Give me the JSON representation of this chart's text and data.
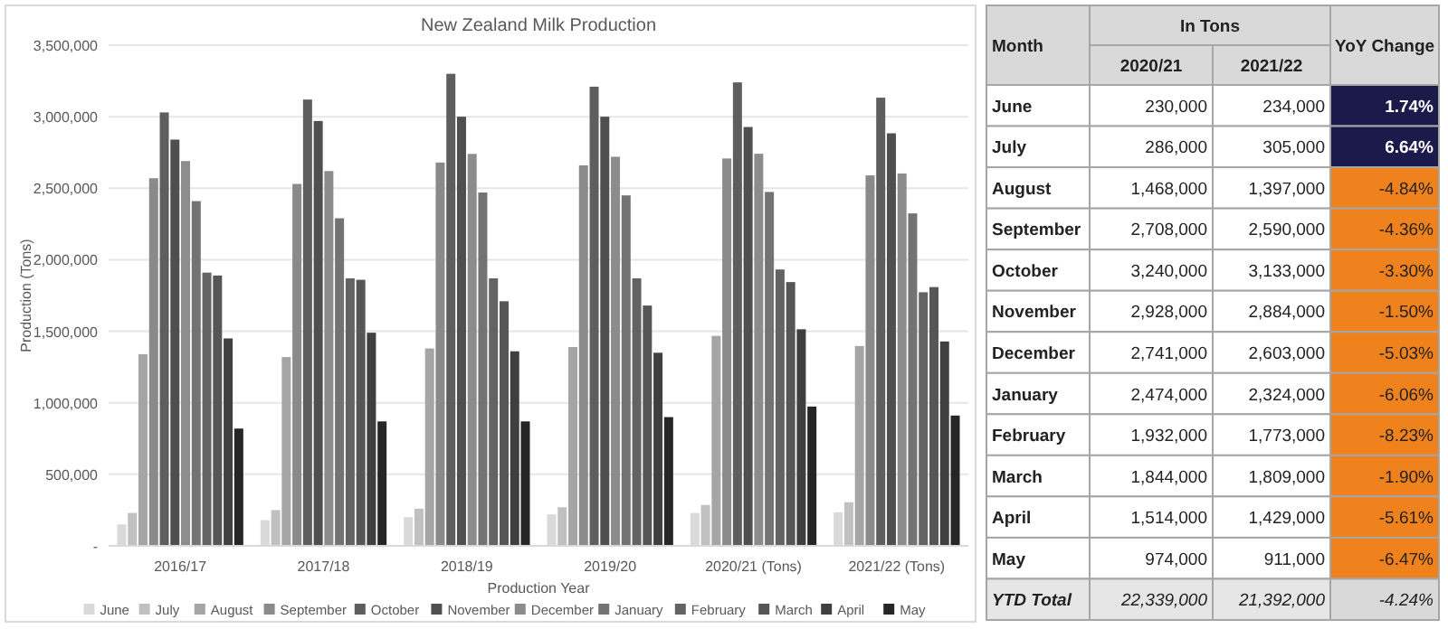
{
  "chart_data": [
    {
      "type": "bar",
      "title": "New Zealand Milk Production",
      "xlabel": "Production Year",
      "ylabel": "Production (Tons)",
      "categories": [
        "2016/17",
        "2017/18",
        "2018/19",
        "2019/20",
        "2020/21 (Tons)",
        "2021/22 (Tons)"
      ],
      "series": [
        {
          "name": "June",
          "color": "#d9d9d9",
          "values": [
            150000,
            180000,
            200000,
            220000,
            230000,
            234000
          ]
        },
        {
          "name": "July",
          "color": "#c0c0c0",
          "values": [
            230000,
            250000,
            260000,
            270000,
            286000,
            305000
          ]
        },
        {
          "name": "August",
          "color": "#a5a5a5",
          "values": [
            1340000,
            1320000,
            1380000,
            1390000,
            1468000,
            1397000
          ]
        },
        {
          "name": "September",
          "color": "#8a8a8a",
          "values": [
            2570000,
            2530000,
            2680000,
            2660000,
            2708000,
            2590000
          ]
        },
        {
          "name": "October",
          "color": "#5e5e5e",
          "values": [
            3030000,
            3120000,
            3300000,
            3210000,
            3240000,
            3133000
          ]
        },
        {
          "name": "November",
          "color": "#4f4f4f",
          "values": [
            2840000,
            2970000,
            3000000,
            3000000,
            2928000,
            2884000
          ]
        },
        {
          "name": "December",
          "color": "#8c8c8c",
          "values": [
            2690000,
            2620000,
            2740000,
            2720000,
            2741000,
            2603000
          ]
        },
        {
          "name": "January",
          "color": "#737373",
          "values": [
            2410000,
            2290000,
            2470000,
            2450000,
            2474000,
            2324000
          ]
        },
        {
          "name": "February",
          "color": "#636363",
          "values": [
            1910000,
            1870000,
            1870000,
            1870000,
            1932000,
            1773000
          ]
        },
        {
          "name": "March",
          "color": "#565656",
          "values": [
            1890000,
            1860000,
            1710000,
            1680000,
            1844000,
            1809000
          ]
        },
        {
          "name": "April",
          "color": "#3f3f3f",
          "values": [
            1450000,
            1490000,
            1360000,
            1350000,
            1514000,
            1429000
          ]
        },
        {
          "name": "May",
          "color": "#262626",
          "values": [
            820000,
            870000,
            870000,
            900000,
            974000,
            911000
          ]
        }
      ],
      "ylim": [
        0,
        3500000
      ],
      "yticks": [
        {
          "value": 0,
          "label": "-"
        },
        {
          "value": 500000,
          "label": "500,000"
        },
        {
          "value": 1000000,
          "label": "1,000,000"
        },
        {
          "value": 1500000,
          "label": "1,500,000"
        },
        {
          "value": 2000000,
          "label": "2,000,000"
        },
        {
          "value": 2500000,
          "label": "2,500,000"
        },
        {
          "value": 3000000,
          "label": "3,000,000"
        },
        {
          "value": 3500000,
          "label": "3,500,000"
        }
      ],
      "grid": "y",
      "legend": "bottom"
    },
    {
      "type": "other",
      "title": "In Tons",
      "xlabel": "Month",
      "categories": [
        "June",
        "July",
        "August",
        "September",
        "October",
        "November",
        "December",
        "January",
        "February",
        "March",
        "April",
        "May",
        "YTD Total"
      ],
      "series": [
        {
          "name": "2020/21",
          "colors": [
            "#ffffff",
            "#ffffff",
            "#ffffff",
            "#ffffff",
            "#ffffff",
            "#ffffff",
            "#ffffff",
            "#ffffff",
            "#ffffff",
            "#ffffff",
            "#ffffff",
            "#ffffff",
            "#e7e6e6"
          ],
          "values": [
            230000,
            286000,
            1468000,
            2708000,
            3240000,
            2928000,
            2741000,
            2474000,
            1932000,
            1844000,
            1514000,
            974000,
            22339000
          ],
          "value_labels": [
            "230,000",
            "286,000",
            "1,468,000",
            "2,708,000",
            "3,240,000",
            "2,928,000",
            "2,741,000",
            "2,474,000",
            "1,932,000",
            "1,844,000",
            "1,514,000",
            "974,000",
            "22,339,000"
          ]
        },
        {
          "name": "2021/22",
          "colors": [
            "#ffffff",
            "#ffffff",
            "#ffffff",
            "#ffffff",
            "#ffffff",
            "#ffffff",
            "#ffffff",
            "#ffffff",
            "#ffffff",
            "#ffffff",
            "#ffffff",
            "#ffffff",
            "#e7e6e6"
          ],
          "values": [
            234000,
            305000,
            1397000,
            2590000,
            3133000,
            2884000,
            2603000,
            2324000,
            1773000,
            1809000,
            1429000,
            911000,
            21392000
          ],
          "value_labels": [
            "234,000",
            "305,000",
            "1,397,000",
            "2,590,000",
            "3,133,000",
            "2,884,000",
            "2,603,000",
            "2,324,000",
            "1,773,000",
            "1,809,000",
            "1,429,000",
            "911,000",
            "21,392,000"
          ]
        },
        {
          "name": "YoY Change",
          "values": [
            1.74,
            6.64,
            -4.84,
            -4.36,
            -3.3,
            -1.5,
            -5.03,
            -6.06,
            -8.23,
            -1.9,
            -5.61,
            -6.47,
            -4.24
          ],
          "value_labels": [
            "1.74%",
            "6.64%",
            "-4.84%",
            "-4.36%",
            "-3.30%",
            "-1.50%",
            "-5.03%",
            "-6.06%",
            "-8.23%",
            "-1.90%",
            "-5.61%",
            "-6.47%",
            "-4.24%"
          ],
          "colors": [
            "#1b1a4a",
            "#1b1a4a",
            "#f0821e",
            "#f0821e",
            "#f0821e",
            "#f0821e",
            "#f0821e",
            "#f0821e",
            "#f0821e",
            "#f0821e",
            "#f0821e",
            "#f0821e",
            "#d9d9d9"
          ]
        }
      ]
    }
  ]
}
